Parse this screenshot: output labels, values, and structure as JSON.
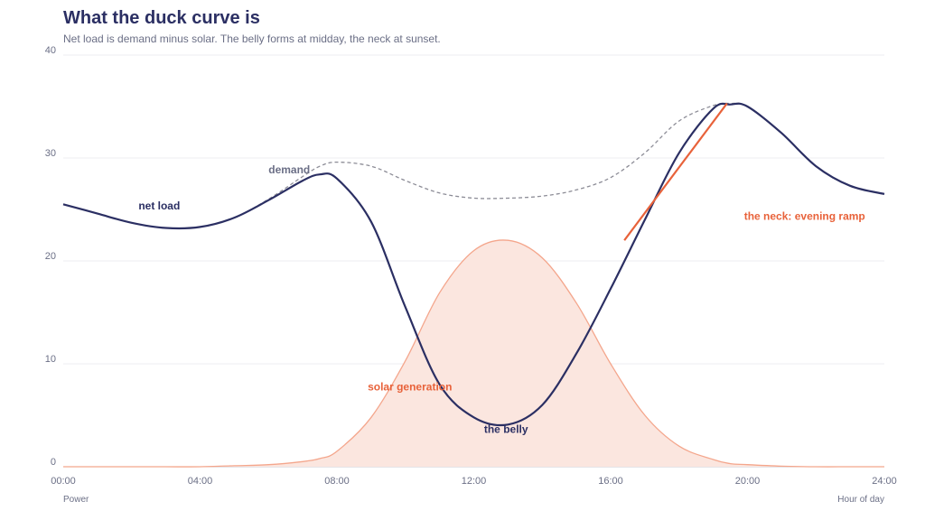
{
  "title": "What the duck curve is",
  "subtitle": "Net load is demand minus solar. The belly forms at midday, the neck at sunset.",
  "chart_data": {
    "type": "line",
    "xlabel": "Hour of day",
    "ylabel": "Power",
    "xlim": [
      0,
      24
    ],
    "ylim": [
      0,
      40
    ],
    "x_ticks": [
      "00:00",
      "04:00",
      "08:00",
      "12:00",
      "16:00",
      "20:00",
      "24:00"
    ],
    "y_ticks": [
      "0",
      "10",
      "20",
      "30",
      "40"
    ],
    "grid": "horizontal",
    "x": [
      0,
      1,
      2,
      3,
      4,
      5,
      6,
      7,
      7.5,
      8,
      9,
      10,
      11,
      12,
      13,
      14,
      15,
      16,
      17,
      18,
      19,
      19.5,
      20,
      21,
      22,
      23,
      24
    ],
    "series": [
      {
        "name": "demand",
        "style": "dashed",
        "color": "#8c8c96",
        "values": [
          25.5,
          24.6,
          23.7,
          23.2,
          23.3,
          24.2,
          26.0,
          28.2,
          29.2,
          29.6,
          29.2,
          27.8,
          26.6,
          26.1,
          26.1,
          26.3,
          26.9,
          28.1,
          30.5,
          33.6,
          35.1,
          35.3,
          35.0,
          32.4,
          29.2,
          27.3,
          26.5
        ]
      },
      {
        "name": "net load",
        "style": "solid",
        "color": "#2b2f63",
        "values": [
          25.5,
          24.6,
          23.7,
          23.2,
          23.3,
          24.2,
          25.9,
          27.8,
          28.4,
          28.0,
          23.8,
          15.5,
          8.0,
          4.8,
          4.1,
          6.0,
          11.0,
          17.3,
          24.0,
          30.5,
          34.8,
          35.2,
          35.0,
          32.4,
          29.2,
          27.3,
          26.5
        ]
      },
      {
        "name": "solar generation",
        "style": "area",
        "color": "#f4a68c",
        "fill": "#fbe6df",
        "values": [
          0,
          0,
          0,
          0,
          0,
          0.1,
          0.2,
          0.5,
          0.8,
          1.5,
          4.8,
          10.3,
          16.9,
          21.0,
          22.0,
          20.3,
          15.9,
          10.0,
          5.0,
          2.0,
          0.7,
          0.3,
          0.2,
          0.05,
          0,
          0,
          0
        ]
      }
    ],
    "annotations": [
      {
        "text": "demand",
        "color": "#6b6f86",
        "x": 6.0,
        "y": 28.5
      },
      {
        "text": "net load",
        "color": "#2b2f63",
        "x": 2.2,
        "y": 25.0
      },
      {
        "text": "solar generation",
        "color": "#e8623a",
        "x": 8.9,
        "y": 7.4
      },
      {
        "text": "the belly",
        "color": "#2b2f63",
        "x": 12.3,
        "y": 3.3
      },
      {
        "text": "the neck: evening ramp",
        "color": "#e8623a",
        "x": 19.9,
        "y": 24.0
      }
    ],
    "ramp": {
      "color": "#e8623a",
      "from": [
        16.4,
        22.0
      ],
      "to": [
        19.4,
        35.3
      ]
    }
  }
}
